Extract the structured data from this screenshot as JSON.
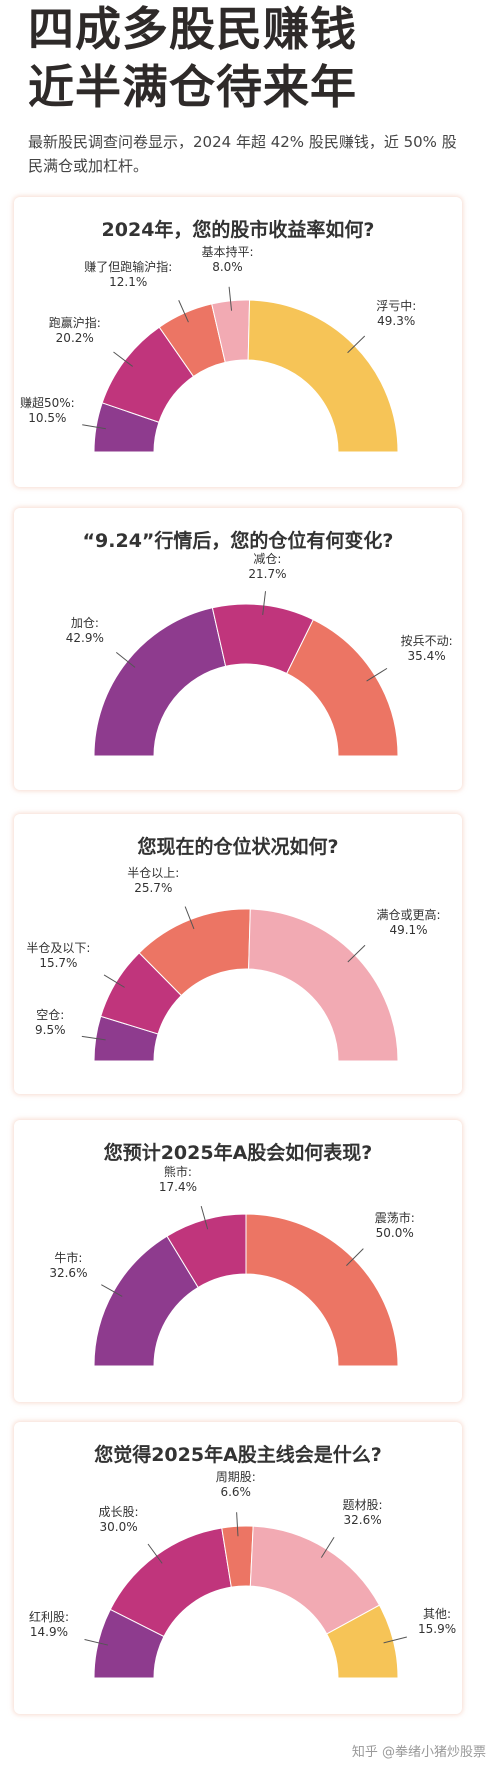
{
  "header": {
    "title": "四成多股民赚钱\n近半满仓待来年",
    "intro": "最新股民调查问卷显示，2024 年超 42% 股民赚钱，近 50% 股民满仓或加杠杆。"
  },
  "watermark": "知乎 @拳绪小猪炒股票",
  "colors": {
    "purple": "#8e3b8e",
    "magenta": "#c0357c",
    "coral": "#ec7564",
    "pink": "#f2aab3",
    "yellow": "#f6c457"
  },
  "chart_data": [
    {
      "type": "pie",
      "title": "2024年，您的股市收益率如何?",
      "slices": [
        {
          "label": "赚超50%:",
          "value": 10.5,
          "display": "10.5%",
          "color": "#8e3b8e"
        },
        {
          "label": "跑赢沪指:",
          "value": 20.2,
          "display": "20.2%",
          "color": "#c0357c"
        },
        {
          "label": "赚了但跑输沪指:",
          "value": 12.1,
          "display": "12.1%",
          "color": "#ec7564"
        },
        {
          "label": "基本持平:",
          "value": 8.0,
          "display": "8.0%",
          "color": "#f2aab3"
        },
        {
          "label": "浮亏中:",
          "value": 49.3,
          "display": "49.3%",
          "color": "#f6c457"
        }
      ]
    },
    {
      "type": "pie",
      "title": "“9.24”行情后，您的仓位有何变化?",
      "slices": [
        {
          "label": "加仓:",
          "value": 42.9,
          "display": "42.9%",
          "color": "#8e3b8e"
        },
        {
          "label": "减仓:",
          "value": 21.7,
          "display": "21.7%",
          "color": "#c0357c"
        },
        {
          "label": "按兵不动:",
          "value": 35.4,
          "display": "35.4%",
          "color": "#ec7564"
        }
      ]
    },
    {
      "type": "pie",
      "title": "您现在的仓位状况如何?",
      "slices": [
        {
          "label": "空仓:",
          "value": 9.5,
          "display": "9.5%",
          "color": "#8e3b8e"
        },
        {
          "label": "半仓及以下:",
          "value": 15.7,
          "display": "15.7%",
          "color": "#c0357c"
        },
        {
          "label": "半仓以上:",
          "value": 25.7,
          "display": "25.7%",
          "color": "#ec7564"
        },
        {
          "label": "满仓或更高:",
          "value": 49.1,
          "display": "49.1%",
          "color": "#f2aab3"
        }
      ]
    },
    {
      "type": "pie",
      "title": "您预计2025年A股会如何表现?",
      "slices": [
        {
          "label": "牛市:",
          "value": 32.6,
          "display": "32.6%",
          "color": "#8e3b8e"
        },
        {
          "label": "熊市:",
          "value": 17.4,
          "display": "17.4%",
          "color": "#c0357c"
        },
        {
          "label": "震荡市:",
          "value": 50.0,
          "display": "50.0%",
          "color": "#ec7564"
        }
      ]
    },
    {
      "type": "pie",
      "title": "您觉得2025年A股主线会是什么?",
      "slices": [
        {
          "label": "红利股:",
          "value": 14.9,
          "display": "14.9%",
          "color": "#8e3b8e"
        },
        {
          "label": "成长股:",
          "value": 30.0,
          "display": "30.0%",
          "color": "#c0357c"
        },
        {
          "label": "周期股:",
          "value": 6.6,
          "display": "6.6%",
          "color": "#ec7564"
        },
        {
          "label": "题材股:",
          "value": 32.6,
          "display": "32.6%",
          "color": "#f2aab3"
        },
        {
          "label": "其他:",
          "value": 15.9,
          "display": "15.9%",
          "color": "#f6c457"
        }
      ]
    }
  ]
}
